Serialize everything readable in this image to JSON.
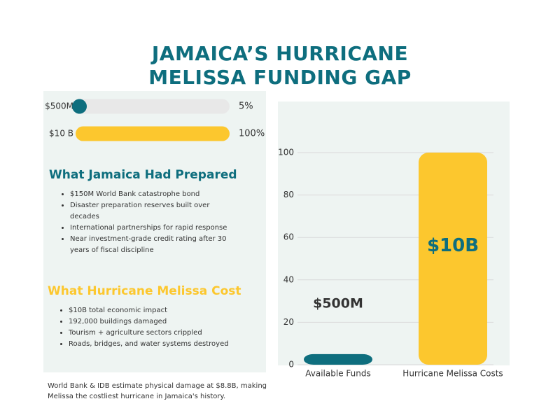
{
  "title": "JAMAICA’S HURRICANE MELISSA FUNDING GAP",
  "sections": [
    {
      "heading": "What Jamaica Had Prepared",
      "color": "#0e6e7e",
      "items": [
        "$150M World Bank catastrophe bond",
        "Disaster preparation reserves built over decades",
        "International partnerships for rapid response",
        "Near investment-grade credit rating after 30 years of fiscal discipline"
      ]
    },
    {
      "heading": "What Hurricane Melissa Cost",
      "color": "#fcc72e",
      "items": [
        "$10B total economic impact",
        "192,000 buildings damaged",
        "Tourism + agriculture sectors crippled",
        "Roads, bridges, and water systems destroyed"
      ]
    }
  ],
  "footnote": "World Bank & IDB estimate physical damage at $8.8B, making Melissa the costliest hurricane in Jamaica's history.",
  "chart_data": [
    {
      "type": "progress",
      "categories": [
        "$500M",
        "$10 B"
      ],
      "values": [
        5,
        100
      ],
      "value_labels": [
        "5%",
        "100%"
      ],
      "colors": [
        "#0e6e7e",
        "#fcc72e"
      ],
      "xlim": [
        0,
        100
      ]
    },
    {
      "type": "bar",
      "categories": [
        "Available Funds",
        "Hurricane Melissa Costs"
      ],
      "values": [
        5,
        100
      ],
      "value_labels": [
        "$500M",
        "$10B"
      ],
      "colors": [
        "#0e6e7e",
        "#fcc72e"
      ],
      "label_colors": [
        "#333333",
        "#0e6e7e"
      ],
      "ylim": [
        0,
        100
      ],
      "yticks": [
        0,
        20,
        40,
        60,
        80,
        100
      ],
      "grid": true
    }
  ]
}
